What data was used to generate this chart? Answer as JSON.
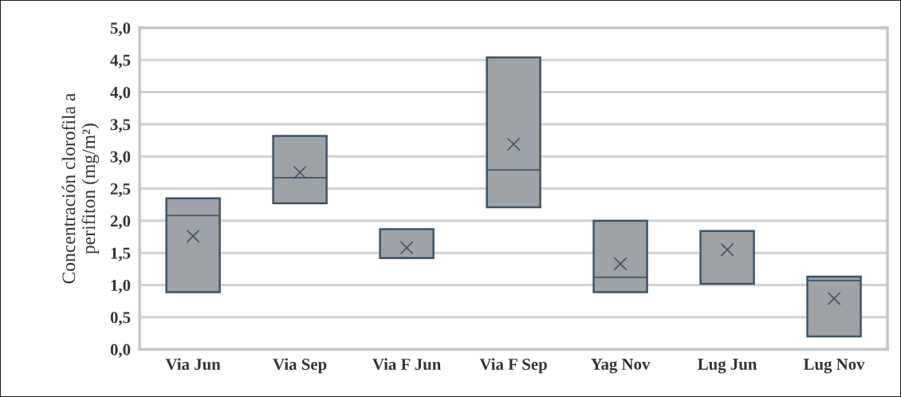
{
  "chart_data": {
    "type": "box",
    "ylabel": "Concentración clorofila a\nperifiton (mg/m²)",
    "categories": [
      "Via Jun",
      "Via Sep",
      "Via F Jun",
      "Via F Sep",
      "Yag Nov",
      "Lug Jun",
      "Lug Nov"
    ],
    "boxes": [
      {
        "low": 0.89,
        "q1": 0.89,
        "median": 2.08,
        "q3": 2.35,
        "high": 2.35,
        "mean": 1.76
      },
      {
        "low": 2.27,
        "q1": 2.27,
        "median": 2.67,
        "q3": 3.32,
        "high": 3.32,
        "mean": 2.75
      },
      {
        "low": 1.42,
        "q1": 1.42,
        "median": 1.42,
        "q3": 1.87,
        "high": 1.87,
        "mean": 1.58
      },
      {
        "low": 2.21,
        "q1": 2.21,
        "median": 2.79,
        "q3": 4.54,
        "high": 4.54,
        "mean": 3.19
      },
      {
        "low": 0.89,
        "q1": 0.89,
        "median": 1.12,
        "q3": 2.0,
        "high": 2.0,
        "mean": 1.33
      },
      {
        "low": 1.02,
        "q1": 1.02,
        "median": 1.02,
        "q3": 1.84,
        "high": 1.84,
        "mean": 1.55
      },
      {
        "low": 0.2,
        "q1": 0.2,
        "median": 1.07,
        "q3": 1.13,
        "high": 1.13,
        "mean": 0.79
      }
    ],
    "color": "#9ea3a8",
    "ylim": [
      0,
      5
    ],
    "yticks": [
      {
        "value": 0,
        "label": "0,0"
      },
      {
        "value": 0.5,
        "label": "0,5"
      },
      {
        "value": 1,
        "label": "1,0"
      },
      {
        "value": 1.5,
        "label": "1,5"
      },
      {
        "value": 2,
        "label": "2,0"
      },
      {
        "value": 2.5,
        "label": "2,5"
      },
      {
        "value": 3,
        "label": "3,0"
      },
      {
        "value": 3.5,
        "label": "3,5"
      },
      {
        "value": 4,
        "label": "4,0"
      },
      {
        "value": 4.5,
        "label": "4,5"
      },
      {
        "value": 5,
        "label": "5,0"
      }
    ],
    "grid": "y",
    "marker": "cross"
  }
}
